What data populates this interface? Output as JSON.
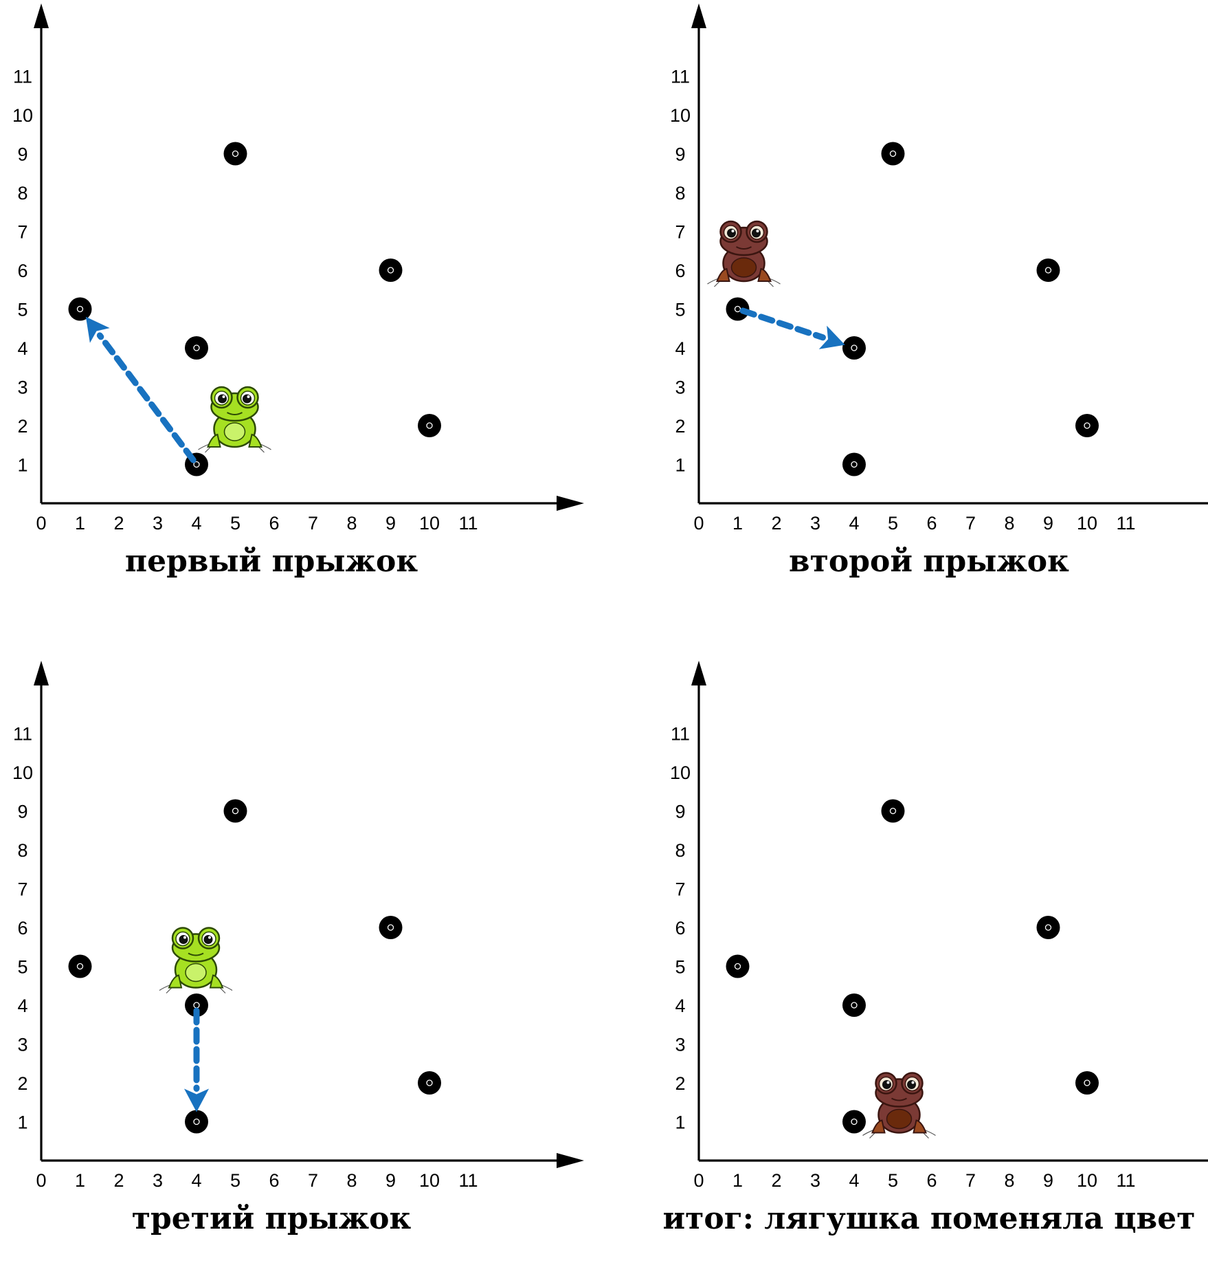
{
  "colors": {
    "axis": "#000000",
    "dot": "#000000",
    "arrow": "#1872c0",
    "frog_green": "#a6e022",
    "frog_brown": "#7b3a35"
  },
  "icons": {
    "frog_green": "frog-green-icon",
    "frog_brown": "frog-brown-icon"
  },
  "x_ticks": [
    "0",
    "1",
    "2",
    "3",
    "4",
    "5",
    "6",
    "7",
    "8",
    "9",
    "10",
    "11"
  ],
  "y_ticks": [
    "1",
    "2",
    "3",
    "4",
    "5",
    "6",
    "7",
    "8",
    "9",
    "10",
    "11"
  ],
  "panels": [
    {
      "caption": "первый прыжок",
      "points": [
        [
          5,
          9
        ],
        [
          9,
          6
        ],
        [
          1,
          5
        ],
        [
          4,
          4
        ],
        [
          10,
          2
        ],
        [
          4,
          1
        ]
      ],
      "jump": {
        "from": [
          4,
          1
        ],
        "to": [
          1,
          5
        ]
      },
      "frog": {
        "color": "green",
        "near": [
          5,
          2
        ]
      }
    },
    {
      "caption": "второй прыжок",
      "points": [
        [
          5,
          9
        ],
        [
          9,
          6
        ],
        [
          1,
          5
        ],
        [
          4,
          4
        ],
        [
          10,
          2
        ],
        [
          4,
          1
        ]
      ],
      "jump": {
        "from": [
          1,
          5
        ],
        "to": [
          4,
          4
        ]
      },
      "frog": {
        "color": "brown",
        "near": [
          1,
          6
        ]
      }
    },
    {
      "caption": "третий прыжок",
      "points": [
        [
          5,
          9
        ],
        [
          9,
          6
        ],
        [
          1,
          5
        ],
        [
          4,
          4
        ],
        [
          10,
          2
        ],
        [
          4,
          1
        ]
      ],
      "jump": {
        "from": [
          4,
          4
        ],
        "to": [
          4,
          1
        ]
      },
      "frog": {
        "color": "green",
        "near": [
          4,
          5
        ]
      }
    },
    {
      "caption": "итог: лягушка поменяла цвет",
      "points": [
        [
          5,
          9
        ],
        [
          9,
          6
        ],
        [
          1,
          5
        ],
        [
          4,
          4
        ],
        [
          10,
          2
        ],
        [
          4,
          1
        ]
      ],
      "jump": null,
      "frog": {
        "color": "brown",
        "near": [
          5,
          1
        ]
      }
    }
  ]
}
